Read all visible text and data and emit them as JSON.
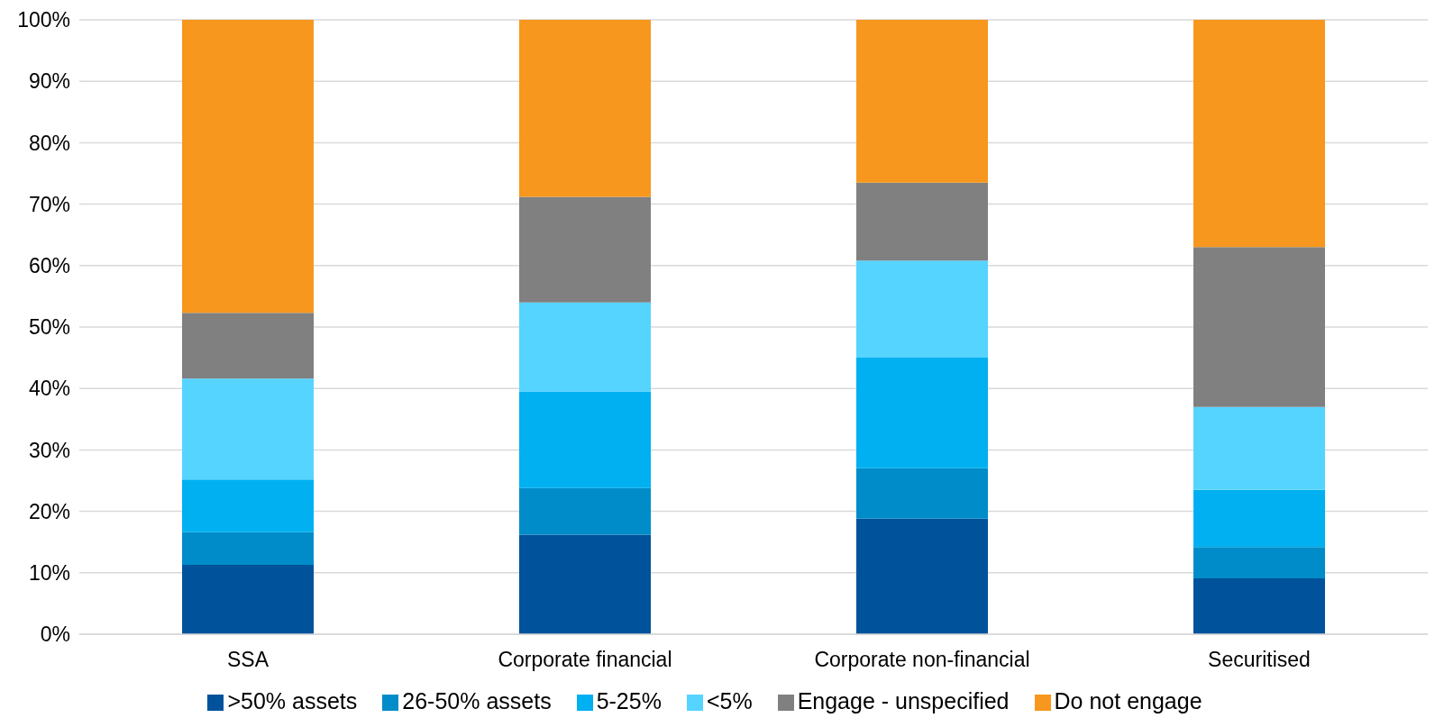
{
  "chart_data": {
    "type": "bar",
    "stacked": true,
    "categories": [
      "SSA",
      "Corporate financial",
      "Corporate non-financial",
      "Securitised"
    ],
    "series": [
      {
        "name": ">50% assets",
        "color": "#00529b",
        "values": [
          11.3,
          16.2,
          18.8,
          9.1
        ]
      },
      {
        "name": "26-50% assets",
        "color": "#008cc8",
        "values": [
          5.3,
          7.6,
          8.2,
          5.1
        ]
      },
      {
        "name": "5-25%",
        "color": "#00b0f0",
        "values": [
          8.6,
          15.7,
          18.0,
          9.3
        ]
      },
      {
        "name": "<5%",
        "color": "#55d4ff",
        "values": [
          16.4,
          14.5,
          15.8,
          13.5
        ]
      },
      {
        "name": "Engage - unspecified",
        "color": "#808080",
        "values": [
          10.7,
          17.2,
          12.7,
          26.0
        ]
      },
      {
        "name": "Do not engage",
        "color": "#f7971e",
        "values": [
          47.7,
          28.8,
          26.5,
          37.0
        ]
      }
    ],
    "ylim": [
      0,
      100
    ],
    "yticks": [
      {
        "value": 0,
        "label": "0%"
      },
      {
        "value": 10,
        "label": "10%"
      },
      {
        "value": 20,
        "label": "20%"
      },
      {
        "value": 30,
        "label": "30%"
      },
      {
        "value": 40,
        "label": "40%"
      },
      {
        "value": 50,
        "label": "50%"
      },
      {
        "value": 60,
        "label": "60%"
      },
      {
        "value": 70,
        "label": "70%"
      },
      {
        "value": 80,
        "label": "80%"
      },
      {
        "value": 90,
        "label": "90%"
      },
      {
        "value": 100,
        "label": "100%"
      }
    ],
    "grid": "y",
    "legend": "bottom"
  }
}
